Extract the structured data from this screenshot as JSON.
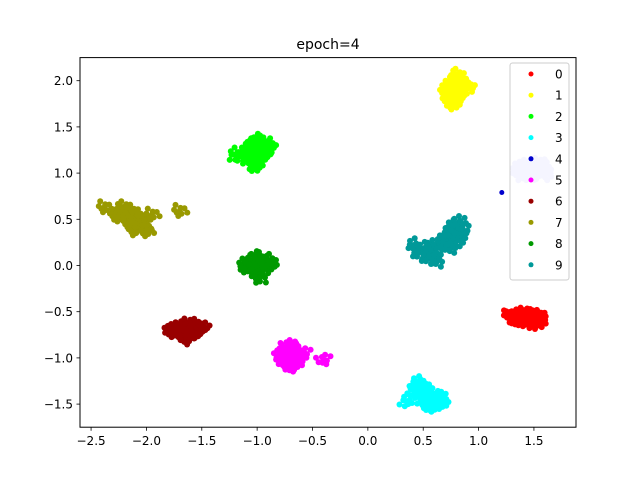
{
  "chart_data": {
    "type": "scatter",
    "title": "epoch=4",
    "xlabel": "",
    "ylabel": "",
    "xlim": [
      -2.6,
      1.88
    ],
    "ylim": [
      -1.75,
      2.25
    ],
    "x_ticks": [
      -2.5,
      -2.0,
      -1.5,
      -1.0,
      -0.5,
      0.0,
      0.5,
      1.0,
      1.5
    ],
    "x_tick_labels": [
      "−2.5",
      "−2.0",
      "−1.5",
      "−1.0",
      "−0.5",
      "0.0",
      "0.5",
      "1.0",
      "1.5"
    ],
    "y_ticks": [
      -1.5,
      -1.0,
      -0.5,
      0.0,
      0.5,
      1.0,
      1.5,
      2.0
    ],
    "y_tick_labels": [
      "−1.5",
      "−1.0",
      "−0.5",
      "0.0",
      "0.5",
      "1.0",
      "1.5",
      "2.0"
    ],
    "grid": false,
    "legend_position": "top-right",
    "series": [
      {
        "name": "0",
        "color": "#ff0000",
        "points": [
          [
            1.38,
            -0.56
          ],
          [
            1.42,
            -0.55
          ],
          [
            1.45,
            -0.57
          ],
          [
            1.48,
            -0.56
          ],
          [
            1.52,
            -0.58
          ],
          [
            1.4,
            -0.58
          ],
          [
            1.35,
            -0.55
          ],
          [
            1.44,
            -0.53
          ],
          [
            1.5,
            -0.54
          ],
          [
            1.55,
            -0.57
          ],
          [
            1.46,
            -0.6
          ],
          [
            1.3,
            -0.55
          ],
          [
            1.43,
            -0.51
          ],
          [
            1.57,
            -0.59
          ],
          [
            1.41,
            -0.57
          ],
          [
            1.49,
            -0.52
          ],
          [
            1.36,
            -0.57
          ],
          [
            1.53,
            -0.55
          ],
          [
            1.47,
            -0.58
          ],
          [
            1.33,
            -0.56
          ],
          [
            1.51,
            -0.61
          ],
          [
            1.39,
            -0.53
          ],
          [
            1.56,
            -0.55
          ],
          [
            1.28,
            -0.54
          ]
        ]
      },
      {
        "name": "1",
        "color": "#ffff00",
        "points": [
          [
            0.78,
            1.86
          ],
          [
            0.8,
            1.9
          ],
          [
            0.75,
            1.82
          ],
          [
            0.82,
            1.95
          ],
          [
            0.77,
            1.78
          ],
          [
            0.84,
            2.0
          ],
          [
            0.79,
            1.88
          ],
          [
            0.72,
            1.85
          ],
          [
            0.81,
            1.84
          ],
          [
            0.76,
            1.92
          ],
          [
            0.86,
            1.96
          ],
          [
            0.74,
            1.8
          ],
          [
            0.83,
            1.91
          ],
          [
            0.78,
            1.76
          ],
          [
            0.8,
            2.04
          ],
          [
            0.7,
            1.88
          ],
          [
            0.85,
            1.89
          ],
          [
            0.77,
            1.97
          ],
          [
            0.73,
            1.93
          ],
          [
            0.81,
            1.79
          ],
          [
            0.92,
            1.93
          ],
          [
            0.82,
            2.06
          ]
        ]
      },
      {
        "name": "2",
        "color": "#00ff00",
        "points": [
          [
            -1.0,
            1.22
          ],
          [
            -0.98,
            1.28
          ],
          [
            -1.03,
            1.18
          ],
          [
            -0.95,
            1.25
          ],
          [
            -1.05,
            1.3
          ],
          [
            -1.01,
            1.14
          ],
          [
            -0.93,
            1.2
          ],
          [
            -1.07,
            1.22
          ],
          [
            -0.97,
            1.33
          ],
          [
            -1.02,
            1.1
          ],
          [
            -0.9,
            1.27
          ],
          [
            -1.08,
            1.16
          ],
          [
            -0.99,
            1.35
          ],
          [
            -1.04,
            1.25
          ],
          [
            -0.96,
            1.17
          ],
          [
            -1.1,
            1.24
          ],
          [
            -0.94,
            1.31
          ],
          [
            -1.0,
            1.08
          ],
          [
            -0.92,
            1.22
          ],
          [
            -1.06,
            1.28
          ],
          [
            -1.2,
            1.2
          ],
          [
            -0.88,
            1.3
          ],
          [
            -1.13,
            1.19
          ]
        ]
      },
      {
        "name": "3",
        "color": "#00ffff",
        "points": [
          [
            0.55,
            -1.42
          ],
          [
            0.52,
            -1.38
          ],
          [
            0.58,
            -1.47
          ],
          [
            0.5,
            -1.35
          ],
          [
            0.6,
            -1.5
          ],
          [
            0.54,
            -1.45
          ],
          [
            0.48,
            -1.32
          ],
          [
            0.62,
            -1.48
          ],
          [
            0.56,
            -1.4
          ],
          [
            0.45,
            -1.3
          ],
          [
            0.59,
            -1.53
          ],
          [
            0.53,
            -1.36
          ],
          [
            0.64,
            -1.44
          ],
          [
            0.57,
            -1.51
          ],
          [
            0.49,
            -1.4
          ],
          [
            0.44,
            -1.27
          ],
          [
            0.61,
            -1.43
          ],
          [
            0.51,
            -1.46
          ],
          [
            0.66,
            -1.5
          ],
          [
            0.42,
            -1.35
          ],
          [
            0.35,
            -1.47
          ],
          [
            0.68,
            -1.46
          ]
        ]
      },
      {
        "name": "4",
        "color": "#0000cd",
        "points": [
          [
            1.21,
            0.79
          ]
        ]
      },
      {
        "name": "5",
        "color": "#ff00ff",
        "points": [
          [
            -0.7,
            -0.98
          ],
          [
            -0.72,
            -1.02
          ],
          [
            -0.68,
            -0.95
          ],
          [
            -0.73,
            -0.92
          ],
          [
            -0.66,
            -1.05
          ],
          [
            -0.71,
            -0.88
          ],
          [
            -0.69,
            -1.08
          ],
          [
            -0.74,
            -1.0
          ],
          [
            -0.65,
            -0.97
          ],
          [
            -0.7,
            -1.1
          ],
          [
            -0.75,
            -0.94
          ],
          [
            -0.67,
            -1.01
          ],
          [
            -0.72,
            -0.86
          ],
          [
            -0.63,
            -0.99
          ],
          [
            -0.76,
            -1.04
          ],
          [
            -0.69,
            -0.91
          ],
          [
            -0.62,
            -1.03
          ],
          [
            -0.71,
            -1.07
          ],
          [
            -0.78,
            -0.97
          ],
          [
            -0.58,
            -0.95
          ],
          [
            -0.4,
            -1.02
          ]
        ]
      },
      {
        "name": "6",
        "color": "#990000",
        "points": [
          [
            -1.65,
            -0.7
          ],
          [
            -1.6,
            -0.68
          ],
          [
            -1.7,
            -0.72
          ],
          [
            -1.58,
            -0.71
          ],
          [
            -1.68,
            -0.66
          ],
          [
            -1.62,
            -0.74
          ],
          [
            -1.55,
            -0.67
          ],
          [
            -1.75,
            -0.7
          ],
          [
            -1.63,
            -0.65
          ],
          [
            -1.57,
            -0.73
          ],
          [
            -1.72,
            -0.68
          ],
          [
            -1.52,
            -0.69
          ],
          [
            -1.66,
            -0.76
          ],
          [
            -1.6,
            -0.62
          ],
          [
            -1.78,
            -0.72
          ],
          [
            -1.5,
            -0.66
          ],
          [
            -1.69,
            -0.75
          ],
          [
            -1.64,
            -0.8
          ],
          [
            -1.54,
            -0.71
          ]
        ]
      },
      {
        "name": "7",
        "color": "#999900",
        "points": [
          [
            -2.15,
            0.52
          ],
          [
            -2.1,
            0.48
          ],
          [
            -2.2,
            0.55
          ],
          [
            -2.05,
            0.45
          ],
          [
            -2.12,
            0.58
          ],
          [
            -2.18,
            0.5
          ],
          [
            -2.08,
            0.42
          ],
          [
            -2.25,
            0.53
          ],
          [
            -2.13,
            0.44
          ],
          [
            -2.02,
            0.4
          ],
          [
            -2.22,
            0.6
          ],
          [
            -2.16,
            0.47
          ],
          [
            -2.06,
            0.5
          ],
          [
            -2.19,
            0.63
          ],
          [
            -2.11,
            0.38
          ],
          [
            -2.28,
            0.55
          ],
          [
            -2.0,
            0.37
          ],
          [
            -2.14,
            0.56
          ],
          [
            -2.09,
            0.51
          ],
          [
            -2.38,
            0.63
          ],
          [
            -1.95,
            0.55
          ],
          [
            -1.7,
            0.59
          ]
        ]
      },
      {
        "name": "8",
        "color": "#009900",
        "points": [
          [
            -1.0,
            0.0
          ],
          [
            -0.98,
            0.03
          ],
          [
            -1.03,
            -0.02
          ],
          [
            -0.95,
            0.02
          ],
          [
            -1.05,
            0.04
          ],
          [
            -1.01,
            -0.05
          ],
          [
            -0.93,
            0.0
          ],
          [
            -1.07,
            0.01
          ],
          [
            -0.97,
            0.07
          ],
          [
            -1.02,
            -0.07
          ],
          [
            -0.9,
            0.03
          ],
          [
            -1.09,
            -0.03
          ],
          [
            -0.99,
            0.08
          ],
          [
            -1.04,
            0.05
          ],
          [
            -0.96,
            -0.04
          ],
          [
            -0.88,
            0.05
          ],
          [
            -0.98,
            -0.14
          ],
          [
            -1.12,
            0.0
          ]
        ]
      },
      {
        "name": "9",
        "color": "#009999",
        "points": [
          [
            0.75,
            0.3
          ],
          [
            0.78,
            0.34
          ],
          [
            0.72,
            0.26
          ],
          [
            0.8,
            0.38
          ],
          [
            0.7,
            0.22
          ],
          [
            0.82,
            0.31
          ],
          [
            0.76,
            0.42
          ],
          [
            0.68,
            0.28
          ],
          [
            0.84,
            0.36
          ],
          [
            0.74,
            0.2
          ],
          [
            0.79,
            0.27
          ],
          [
            0.86,
            0.44
          ],
          [
            0.66,
            0.24
          ],
          [
            0.73,
            0.36
          ],
          [
            0.81,
            0.46
          ],
          [
            0.62,
            0.18
          ],
          [
            0.55,
            0.15
          ],
          [
            0.5,
            0.18
          ],
          [
            0.58,
            0.1
          ],
          [
            0.62,
            0.05
          ],
          [
            0.53,
            0.08
          ],
          [
            0.45,
            0.13
          ],
          [
            0.57,
            0.2
          ],
          [
            0.41,
            0.22
          ]
        ]
      }
    ],
    "extra_points": [
      {
        "color": "#ccccff",
        "points": [
          [
            1.45,
            1.03
          ],
          [
            1.48,
            1.06
          ],
          [
            1.52,
            1.01
          ],
          [
            1.42,
            1.07
          ],
          [
            1.55,
            1.05
          ],
          [
            1.5,
            1.0
          ],
          [
            1.4,
            1.02
          ],
          [
            1.58,
            1.08
          ],
          [
            1.47,
            1.04
          ],
          [
            1.53,
            1.07
          ],
          [
            1.6,
            1.03
          ],
          [
            1.43,
            1.0
          ],
          [
            1.38,
            1.05
          ],
          [
            1.62,
            1.0
          ],
          [
            1.56,
            1.11
          ],
          [
            1.46,
            1.09
          ],
          [
            1.51,
            1.04
          ],
          [
            1.36,
            1.0
          ]
        ]
      }
    ]
  }
}
